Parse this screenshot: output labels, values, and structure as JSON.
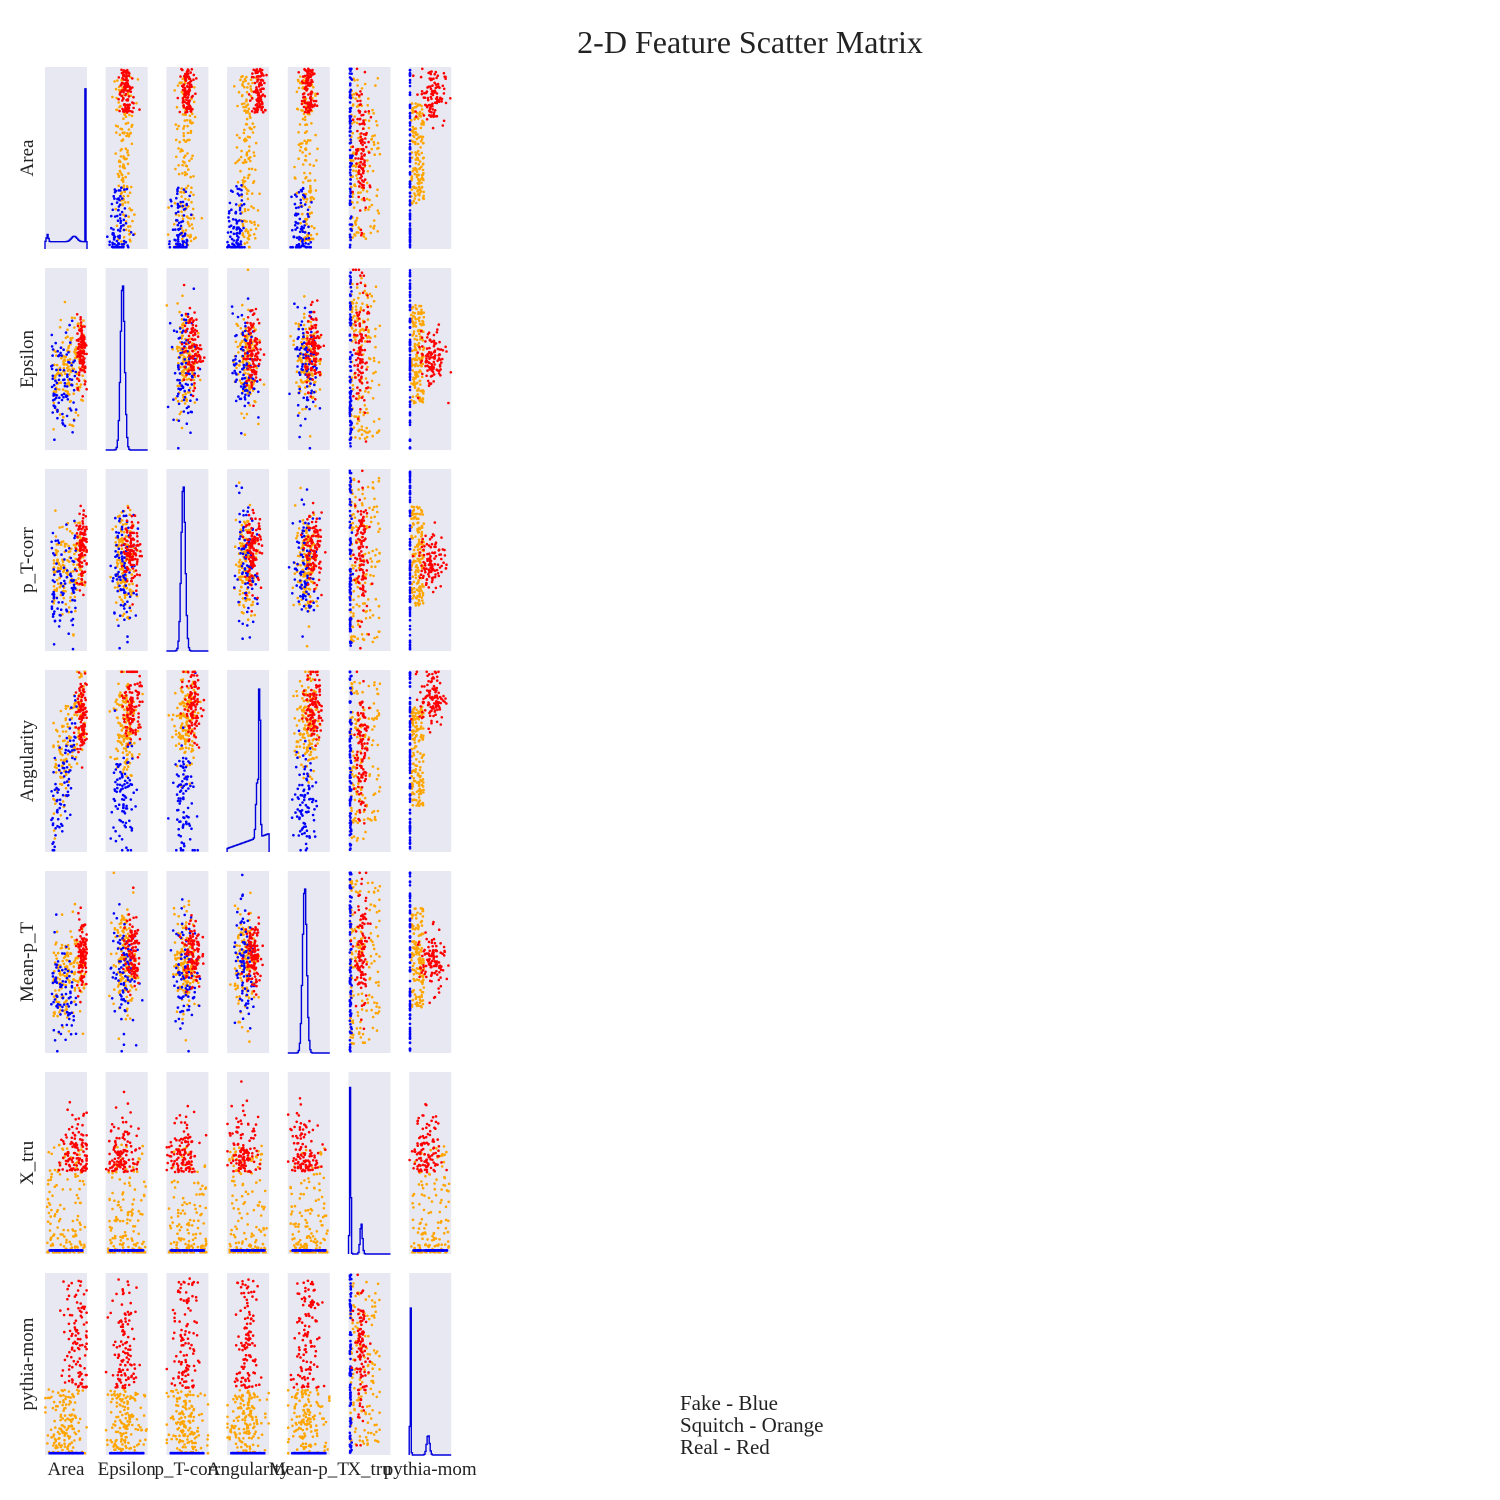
{
  "chart_data": {
    "type": "scatter",
    "title": "2-D Feature Scatter Matrix",
    "variables": [
      "Area",
      "Epsilon",
      "p_T-corr",
      "Angularity",
      "Mean-p_T",
      "X_tru",
      "pythia-mom"
    ],
    "diagonal": "histogram",
    "off_diagonal": "scatter",
    "grid": false,
    "series": [
      {
        "name": "Fake",
        "color": "#0000ff"
      },
      {
        "name": "Squitch",
        "color": "#ffa500"
      },
      {
        "name": "Real",
        "color": "#ff0000"
      }
    ],
    "legend_text": [
      "Fake - Blue",
      "Squitch - Orange",
      "Real - Red"
    ],
    "legend_placement": "bottom-center"
  },
  "colors": {
    "panel_bg": "#e8e8f2",
    "fake": "#0000ff",
    "squitch": "#ffa500",
    "real": "#ff0000",
    "hist": "#0000dd"
  }
}
